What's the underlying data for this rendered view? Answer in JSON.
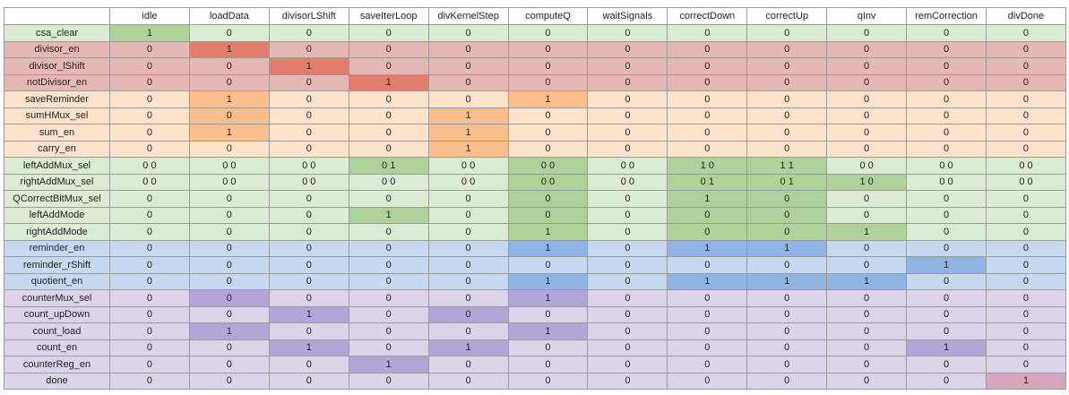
{
  "table": {
    "header": [
      "idle",
      "loadData",
      "divisorLShift",
      "saveIterLoop",
      "divKernelStep",
      "computeQ",
      "waitSignals",
      "correctDown",
      "correctUp",
      "qInv",
      "remCorrection",
      "divDone"
    ],
    "rows": [
      [
        "csa_clear",
        1,
        0,
        0,
        0,
        0,
        0,
        0,
        0,
        0,
        0,
        0,
        0
      ],
      [
        "divisor_en",
        0,
        1,
        0,
        0,
        0,
        0,
        0,
        0,
        0,
        0,
        0,
        0
      ],
      [
        "divisor_lShift",
        0,
        0,
        1,
        0,
        0,
        0,
        0,
        0,
        0,
        0,
        0,
        0
      ],
      [
        "notDivisor_en",
        0,
        0,
        0,
        1,
        0,
        0,
        0,
        0,
        0,
        0,
        0,
        0
      ],
      [
        "saveReminder",
        0,
        1,
        0,
        0,
        0,
        1,
        0,
        0,
        0,
        0,
        0,
        0
      ],
      [
        "sumHMux_sel",
        0,
        0,
        0,
        0,
        1,
        0,
        0,
        0,
        0,
        0,
        0,
        0
      ],
      [
        "sum_en",
        0,
        1,
        0,
        0,
        1,
        0,
        0,
        0,
        0,
        0,
        0,
        0
      ],
      [
        "carry_en",
        0,
        0,
        0,
        0,
        1,
        0,
        0,
        0,
        0,
        0,
        0,
        0
      ],
      [
        "leftAddMux_sel",
        "0 0",
        "0 0",
        "0 0",
        "0 1",
        "0 0",
        "0 0",
        "0 0",
        "1 0",
        "1 1",
        "0 0",
        "0 0",
        "0 0"
      ],
      [
        "rightAddMux_sel",
        "0 0",
        "0 0",
        "0 0",
        "0 0",
        "0 0",
        "0 0",
        "0 0",
        "0 1",
        "0 1",
        "1 0",
        "0 0",
        "0 0"
      ],
      [
        "QCorrectBitMux_sel",
        0,
        0,
        0,
        0,
        0,
        0,
        0,
        1,
        0,
        0,
        0,
        0
      ],
      [
        "leftAddMode",
        0,
        0,
        0,
        1,
        0,
        0,
        0,
        0,
        0,
        0,
        0,
        0
      ],
      [
        "rightAddMode",
        0,
        0,
        0,
        0,
        0,
        1,
        0,
        0,
        0,
        1,
        0,
        0
      ],
      [
        "reminder_en",
        0,
        0,
        0,
        0,
        0,
        1,
        0,
        1,
        1,
        0,
        0,
        0
      ],
      [
        "reminder_rShift",
        0,
        0,
        0,
        0,
        0,
        0,
        0,
        0,
        0,
        0,
        1,
        0
      ],
      [
        "quotient_en",
        0,
        0,
        0,
        0,
        0,
        1,
        0,
        1,
        1,
        1,
        0,
        0
      ],
      [
        "counterMux_sel",
        0,
        0,
        0,
        0,
        0,
        1,
        0,
        0,
        0,
        0,
        0,
        0
      ],
      [
        "count_upDown",
        0,
        0,
        1,
        0,
        0,
        0,
        0,
        0,
        0,
        0,
        0,
        0
      ],
      [
        "count_load",
        0,
        1,
        0,
        0,
        0,
        1,
        0,
        0,
        0,
        0,
        0,
        0
      ],
      [
        "count_en",
        0,
        0,
        1,
        0,
        1,
        0,
        0,
        0,
        0,
        0,
        1,
        0
      ],
      [
        "counterReg_en",
        0,
        0,
        0,
        1,
        0,
        0,
        0,
        0,
        0,
        0,
        0,
        0
      ],
      [
        "done",
        0,
        0,
        0,
        0,
        0,
        0,
        0,
        0,
        0,
        0,
        0,
        1
      ]
    ]
  }
}
